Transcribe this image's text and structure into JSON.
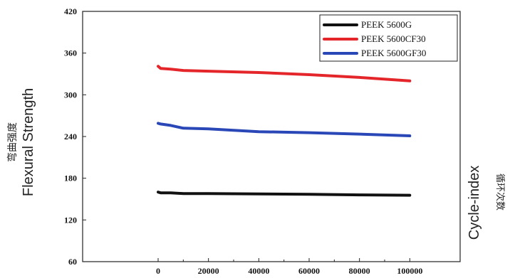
{
  "chart_data": {
    "type": "line",
    "xlabel_en": "",
    "ylabel_en": "Flexural Strength",
    "ylabel_cn": "弯曲强度",
    "right_label_en": "Cycle-index",
    "right_label_cn": "循环次数",
    "xlim": [
      -30000,
      120000
    ],
    "ylim": [
      60,
      420
    ],
    "x_ticks": [
      0,
      20000,
      40000,
      60000,
      80000,
      100000
    ],
    "x_tick_labels": [
      "0",
      "20000",
      "40000",
      "60000",
      "80000",
      "100000"
    ],
    "y_ticks": [
      60,
      120,
      180,
      240,
      300,
      360,
      420
    ],
    "y_tick_labels": [
      "60",
      "120",
      "180",
      "240",
      "300",
      "360",
      "420"
    ],
    "legend_position": "top-right",
    "series": [
      {
        "name": "PEEK 5600G",
        "color": "#111111",
        "x": [
          0,
          1000,
          5000,
          10000,
          20000,
          40000,
          60000,
          80000,
          100000
        ],
        "y": [
          160,
          159,
          159,
          158,
          158,
          157.5,
          157,
          156,
          155.5
        ]
      },
      {
        "name": "PEEK 5600CF30",
        "color": "#e4262a",
        "x": [
          0,
          1000,
          5000,
          10000,
          20000,
          40000,
          60000,
          80000,
          100000
        ],
        "y": [
          341,
          338,
          337,
          335,
          334,
          332,
          329,
          325,
          320
        ]
      },
      {
        "name": "PEEK 5600GF30",
        "color": "#2a47b7",
        "x": [
          0,
          1000,
          3000,
          5000,
          10000,
          20000,
          40000,
          60000,
          80000,
          100000
        ],
        "y": [
          259,
          258,
          257,
          256,
          252,
          251,
          247,
          245.5,
          243.5,
          241
        ]
      }
    ]
  }
}
